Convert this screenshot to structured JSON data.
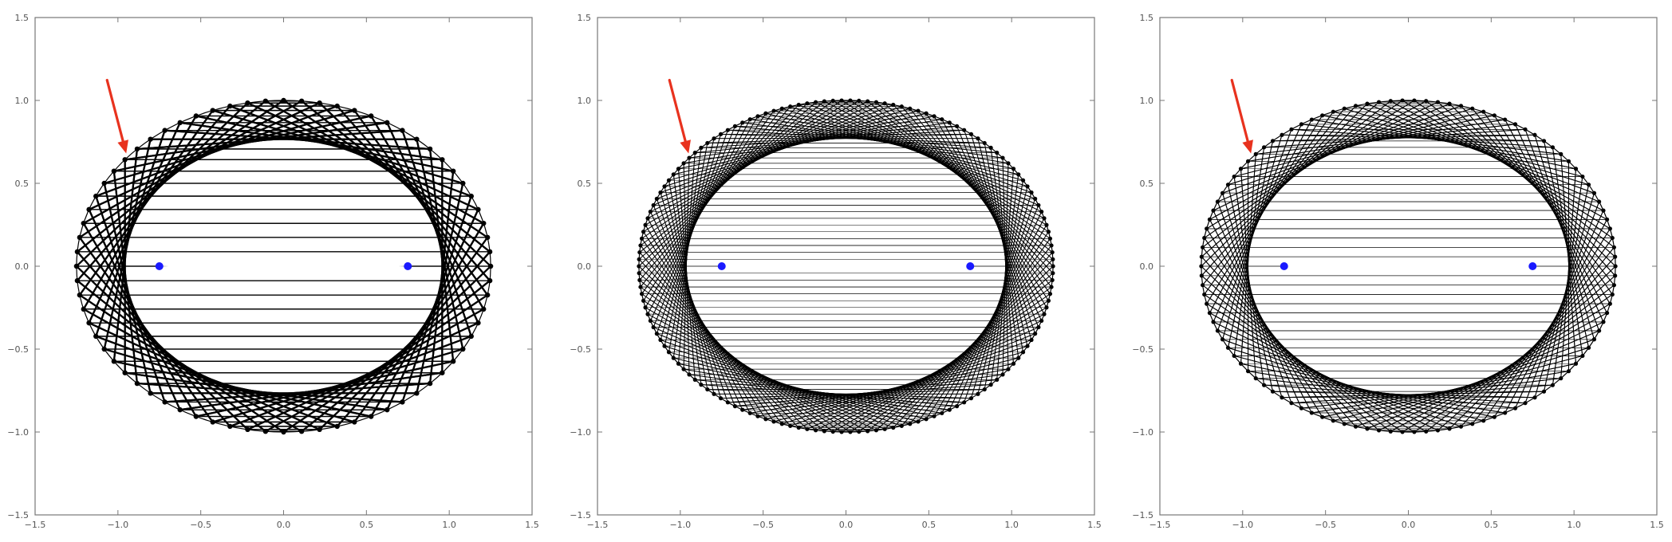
{
  "chart_data": [
    {
      "type": "line",
      "title": "",
      "xlabel": "",
      "ylabel": "",
      "xlim": [
        -1.5,
        1.5
      ],
      "ylim": [
        -1.5,
        1.5
      ],
      "xticks": [
        "-1.5",
        "-1.0",
        "-0.5",
        "0.0",
        "0.5",
        "1.0",
        "1.5"
      ],
      "yticks": [
        "-1.5",
        "-1.0",
        "-0.5",
        "0.0",
        "0.5",
        "1.0",
        "1.5"
      ],
      "grid": false,
      "ellipse": {
        "a": 1.25,
        "b": 1.0
      },
      "foci": [
        [
          -0.75,
          0.0
        ],
        [
          0.75,
          0.0
        ]
      ],
      "chord_points": 72,
      "arrow_target": [
        -0.95,
        0.68
      ],
      "colors": {
        "chords": "#000000",
        "foci": "#1a1aff",
        "arrow": "#e8321e"
      }
    },
    {
      "type": "line",
      "title": "",
      "xlabel": "",
      "ylabel": "",
      "xlim": [
        -1.5,
        1.5
      ],
      "ylim": [
        -1.5,
        1.5
      ],
      "xticks": [
        "-1.5",
        "-1.0",
        "-0.5",
        "0.0",
        "0.5",
        "1.0",
        "1.5"
      ],
      "yticks": [
        "-1.5",
        "-1.0",
        "-0.5",
        "0.0",
        "0.5",
        "1.0",
        "1.5"
      ],
      "grid": false,
      "ellipse": {
        "a": 1.25,
        "b": 1.0
      },
      "foci": [
        [
          -0.75,
          0.0
        ],
        [
          0.75,
          0.0
        ]
      ],
      "chord_points": 150,
      "arrow_target": [
        -0.95,
        0.68
      ],
      "colors": {
        "chords": "#000000",
        "foci": "#1a1aff",
        "arrow": "#e8321e"
      }
    },
    {
      "type": "line",
      "title": "",
      "xlabel": "",
      "ylabel": "",
      "xlim": [
        -1.5,
        1.5
      ],
      "ylim": [
        -1.5,
        1.5
      ],
      "xticks": [
        "-1.5",
        "-1.0",
        "-0.5",
        "0.0",
        "0.5",
        "1.0",
        "1.5"
      ],
      "yticks": [
        "-1.5",
        "-1.0",
        "-0.5",
        "0.0",
        "0.5",
        "1.0",
        "1.5"
      ],
      "grid": false,
      "ellipse": {
        "a": 1.25,
        "b": 1.0
      },
      "foci": [
        [
          -0.75,
          0.0
        ],
        [
          0.75,
          0.0
        ]
      ],
      "chord_points": 110,
      "arrow_target": [
        -0.95,
        0.68
      ],
      "colors": {
        "chords": "#000000",
        "foci": "#1a1aff",
        "arrow": "#e8321e"
      }
    }
  ]
}
